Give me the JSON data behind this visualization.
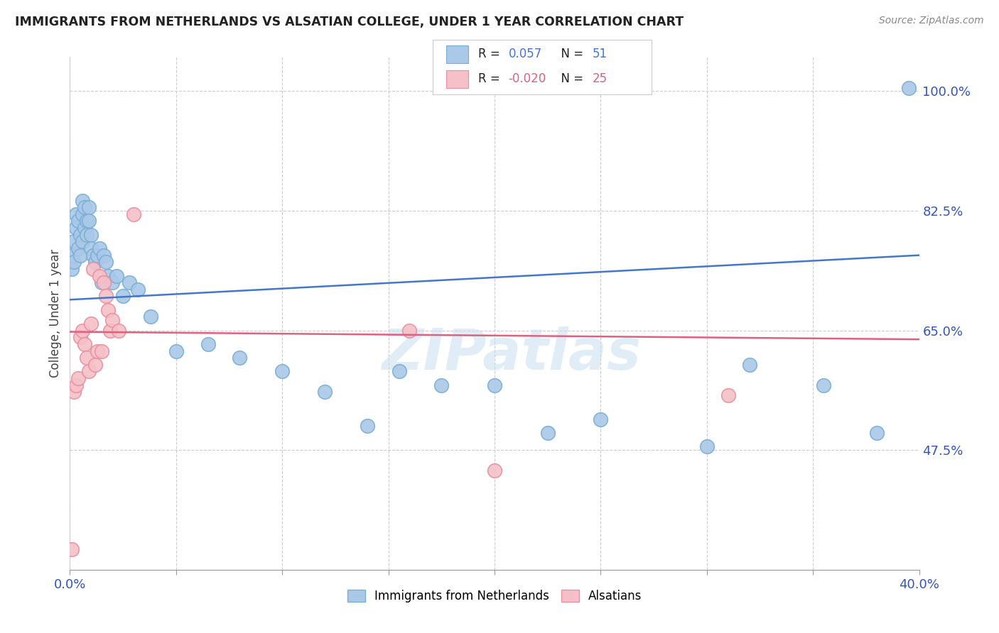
{
  "title": "IMMIGRANTS FROM NETHERLANDS VS ALSATIAN COLLEGE, UNDER 1 YEAR CORRELATION CHART",
  "source": "Source: ZipAtlas.com",
  "ylabel": "College, Under 1 year",
  "xlim": [
    0.0,
    0.4
  ],
  "ylim": [
    0.3,
    1.05
  ],
  "xticks": [
    0.0,
    0.05,
    0.1,
    0.15,
    0.2,
    0.25,
    0.3,
    0.35,
    0.4
  ],
  "right_yticks": [
    1.0,
    0.825,
    0.65,
    0.475
  ],
  "right_yticklabels": [
    "100.0%",
    "82.5%",
    "65.0%",
    "47.5%"
  ],
  "blue_color": "#aac8e8",
  "blue_edge": "#7aafd4",
  "pink_color": "#f5c0c8",
  "pink_edge": "#e890a0",
  "trend_blue": "#4477cc",
  "trend_pink": "#e06080",
  "watermark": "ZIPatlas",
  "blue_trend_x0": 0.0,
  "blue_trend_y0": 0.695,
  "blue_trend_x1": 0.4,
  "blue_trend_y1": 0.76,
  "pink_trend_x0": 0.0,
  "pink_trend_y0": 0.648,
  "pink_trend_x1": 0.4,
  "pink_trend_y1": 0.637,
  "blue_x": [
    0.001,
    0.001,
    0.002,
    0.002,
    0.003,
    0.003,
    0.004,
    0.004,
    0.005,
    0.005,
    0.006,
    0.006,
    0.006,
    0.007,
    0.007,
    0.008,
    0.008,
    0.009,
    0.009,
    0.01,
    0.01,
    0.011,
    0.012,
    0.013,
    0.014,
    0.015,
    0.016,
    0.017,
    0.018,
    0.02,
    0.022,
    0.025,
    0.028,
    0.032,
    0.038,
    0.05,
    0.065,
    0.08,
    0.1,
    0.12,
    0.14,
    0.155,
    0.175,
    0.2,
    0.225,
    0.25,
    0.3,
    0.32,
    0.355,
    0.38,
    0.395
  ],
  "blue_y": [
    0.74,
    0.76,
    0.75,
    0.78,
    0.82,
    0.8,
    0.77,
    0.81,
    0.76,
    0.79,
    0.78,
    0.82,
    0.84,
    0.8,
    0.83,
    0.79,
    0.81,
    0.83,
    0.81,
    0.79,
    0.77,
    0.76,
    0.75,
    0.76,
    0.77,
    0.72,
    0.76,
    0.75,
    0.73,
    0.72,
    0.73,
    0.7,
    0.72,
    0.71,
    0.67,
    0.62,
    0.63,
    0.61,
    0.59,
    0.56,
    0.51,
    0.59,
    0.57,
    0.57,
    0.5,
    0.52,
    0.48,
    0.6,
    0.57,
    0.5,
    1.005
  ],
  "pink_x": [
    0.001,
    0.002,
    0.003,
    0.004,
    0.005,
    0.006,
    0.007,
    0.008,
    0.009,
    0.01,
    0.011,
    0.012,
    0.013,
    0.014,
    0.015,
    0.016,
    0.017,
    0.018,
    0.019,
    0.02,
    0.023,
    0.03,
    0.16,
    0.2,
    0.31
  ],
  "pink_y": [
    0.33,
    0.56,
    0.57,
    0.58,
    0.64,
    0.65,
    0.63,
    0.61,
    0.59,
    0.66,
    0.74,
    0.6,
    0.62,
    0.73,
    0.62,
    0.72,
    0.7,
    0.68,
    0.65,
    0.665,
    0.65,
    0.82,
    0.65,
    0.445,
    0.555
  ]
}
